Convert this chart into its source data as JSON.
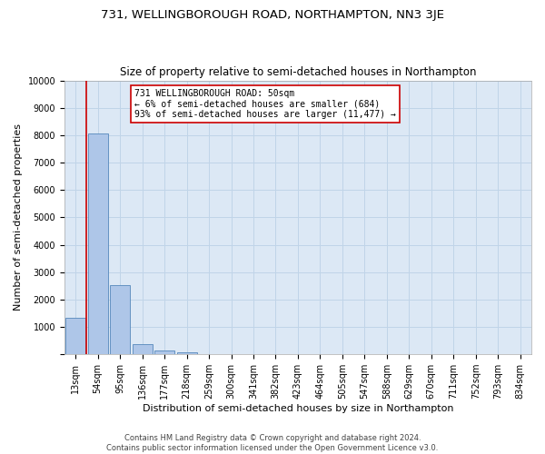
{
  "title": "731, WELLINGBOROUGH ROAD, NORTHAMPTON, NN3 3JE",
  "subtitle": "Size of property relative to semi-detached houses in Northampton",
  "xlabel": "Distribution of semi-detached houses by size in Northampton",
  "ylabel": "Number of semi-detached properties",
  "footer_line1": "Contains HM Land Registry data © Crown copyright and database right 2024.",
  "footer_line2": "Contains public sector information licensed under the Open Government Licence v3.0.",
  "annotation_line1": "731 WELLINGBOROUGH ROAD: 50sqm",
  "annotation_line2": "← 6% of semi-detached houses are smaller (684)",
  "annotation_line3": "93% of semi-detached houses are larger (11,477) →",
  "bar_labels": [
    "13sqm",
    "54sqm",
    "95sqm",
    "136sqm",
    "177sqm",
    "218sqm",
    "259sqm",
    "300sqm",
    "341sqm",
    "382sqm",
    "423sqm",
    "464sqm",
    "505sqm",
    "547sqm",
    "588sqm",
    "629sqm",
    "670sqm",
    "711sqm",
    "752sqm",
    "793sqm",
    "834sqm"
  ],
  "bar_values": [
    1320,
    8050,
    2530,
    380,
    130,
    90,
    0,
    0,
    0,
    0,
    0,
    0,
    0,
    0,
    0,
    0,
    0,
    0,
    0,
    0,
    0
  ],
  "bar_color": "#aec6e8",
  "bar_edge_color": "#5588bb",
  "highlight_color": "#cc0000",
  "ylim": [
    0,
    10000
  ],
  "yticks": [
    0,
    1000,
    2000,
    3000,
    4000,
    5000,
    6000,
    7000,
    8000,
    9000,
    10000
  ],
  "annotation_box_color": "#cc0000",
  "background_color": "#ffffff",
  "plot_bg_color": "#dce8f5",
  "grid_color": "#c0d4e8",
  "title_fontsize": 9.5,
  "subtitle_fontsize": 8.5,
  "axis_label_fontsize": 8,
  "tick_fontsize": 7,
  "annotation_fontsize": 7,
  "footer_fontsize": 6
}
